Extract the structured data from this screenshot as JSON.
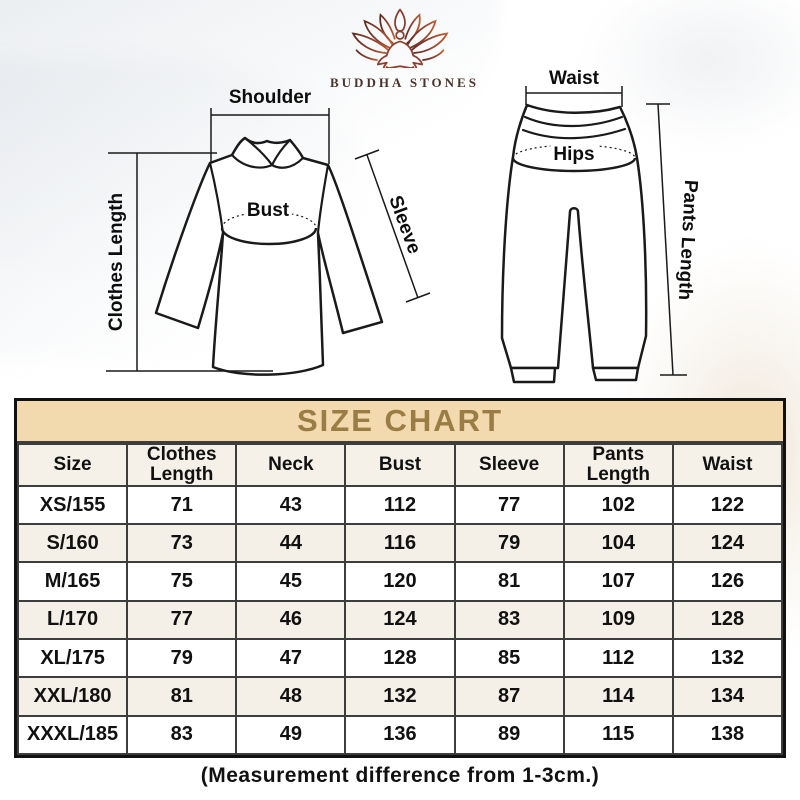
{
  "brand": {
    "name": "BUDDHA STONES"
  },
  "diagrams": {
    "top_garment": {
      "shoulder_label": "Shoulder",
      "clothes_length_label": "Clothes Length",
      "bust_label": "Bust",
      "sleeve_label": "Sleeve"
    },
    "pants": {
      "waist_label": "Waist",
      "hips_label": "Hips",
      "pants_length_label": "Pants Length"
    }
  },
  "size_chart": {
    "title": "SIZE CHART",
    "columns": [
      "Size",
      "Clothes\nLength",
      "Neck",
      "Bust",
      "Sleeve",
      "Pants\nLength",
      "Waist"
    ],
    "rows": [
      {
        "size": "XS/155",
        "values": [
          71,
          43,
          112,
          77,
          102,
          122
        ]
      },
      {
        "size": "S/160",
        "values": [
          73,
          44,
          116,
          79,
          104,
          124
        ]
      },
      {
        "size": "M/165",
        "values": [
          75,
          45,
          120,
          81,
          107,
          126
        ]
      },
      {
        "size": "L/170",
        "values": [
          77,
          46,
          124,
          83,
          109,
          128
        ]
      },
      {
        "size": "XL/175",
        "values": [
          79,
          47,
          128,
          85,
          112,
          132
        ]
      },
      {
        "size": "XXL/180",
        "values": [
          81,
          48,
          132,
          87,
          114,
          134
        ]
      },
      {
        "size": "XXXL/185",
        "values": [
          83,
          49,
          136,
          89,
          115,
          138
        ]
      }
    ]
  },
  "footnote": "(Measurement difference from 1-3cm.)",
  "colors": {
    "banner_bg": "#f3d9ae",
    "banner_text": "#9a7c45",
    "header_row_bg": "#f5f1e9",
    "alt_row_bg": "#f4efe7",
    "table_border": "#111111",
    "cell_border": "#3d3d3d",
    "line_color": "#1a1a1a",
    "brand_text": "#4a332b",
    "logo_dark": "#5f2d22",
    "logo_mid": "#8a4030",
    "logo_light": "#c05c2f"
  }
}
